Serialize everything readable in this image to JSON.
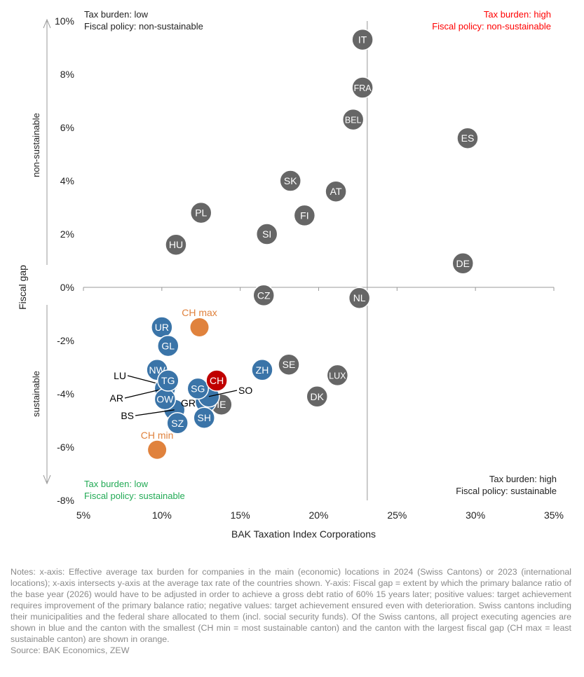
{
  "chart_data": {
    "type": "scatter",
    "xlabel": "BAK Taxation Index Corporations",
    "ylabel": "Fiscal gap",
    "xlim": [
      5,
      35
    ],
    "ylim": [
      -8,
      10
    ],
    "xticks": [
      "5%",
      "10%",
      "15%",
      "20%",
      "25%",
      "30%",
      "35%"
    ],
    "yticks": [
      "-8%",
      "-6%",
      "-4%",
      "-2%",
      "0%",
      "2%",
      "4%",
      "6%",
      "8%",
      "10%"
    ],
    "x_axis_crosses_y_at": 23.1,
    "y_arrow_labels": {
      "up": "non-sustainable",
      "down": "sustainable"
    },
    "quadrants": {
      "top_left": [
        "Tax burden: low",
        "Fiscal policy: non-sustainable"
      ],
      "top_right": [
        "Tax burden: high",
        "Fiscal policy: non-sustainable"
      ],
      "bottom_left": [
        "Tax burden: low",
        "Fiscal policy: sustainable"
      ],
      "bottom_right": [
        "Tax burden: high",
        "Fiscal policy: sustainable"
      ]
    },
    "colors": {
      "country": "#666666",
      "canton": "#3a74a8",
      "ch": "#c00000",
      "ch_extreme": "#e0823d",
      "top_right_text": "#ff0000",
      "bottom_left_text": "#22aa55"
    },
    "points": [
      {
        "label": "IT",
        "x": 22.8,
        "y": 9.3,
        "group": "country"
      },
      {
        "label": "FRA",
        "x": 22.8,
        "y": 7.5,
        "group": "country"
      },
      {
        "label": "BEL",
        "x": 22.2,
        "y": 6.3,
        "group": "country"
      },
      {
        "label": "ES",
        "x": 29.5,
        "y": 5.6,
        "group": "country"
      },
      {
        "label": "SK",
        "x": 18.2,
        "y": 4.0,
        "group": "country"
      },
      {
        "label": "AT",
        "x": 21.1,
        "y": 3.6,
        "group": "country"
      },
      {
        "label": "PL",
        "x": 12.5,
        "y": 2.8,
        "group": "country"
      },
      {
        "label": "FI",
        "x": 19.1,
        "y": 2.7,
        "group": "country"
      },
      {
        "label": "SI",
        "x": 16.7,
        "y": 2.0,
        "group": "country"
      },
      {
        "label": "HU",
        "x": 10.9,
        "y": 1.6,
        "group": "country"
      },
      {
        "label": "DE",
        "x": 29.2,
        "y": 0.9,
        "group": "country"
      },
      {
        "label": "CZ",
        "x": 16.5,
        "y": -0.3,
        "group": "country"
      },
      {
        "label": "NL",
        "x": 22.6,
        "y": -0.4,
        "group": "country"
      },
      {
        "label": "SE",
        "x": 18.1,
        "y": -2.9,
        "group": "country"
      },
      {
        "label": "LUX",
        "x": 21.2,
        "y": -3.3,
        "group": "country"
      },
      {
        "label": "DK",
        "x": 19.9,
        "y": -4.1,
        "group": "country"
      },
      {
        "label": "IE",
        "x": 13.8,
        "y": -4.4,
        "group": "country"
      },
      {
        "label": "CH max",
        "x": 12.4,
        "y": -1.5,
        "group": "ch_extreme"
      },
      {
        "label": "CH min",
        "x": 9.7,
        "y": -6.1,
        "group": "ch_extreme"
      },
      {
        "label": "UR",
        "x": 10.0,
        "y": -1.5,
        "group": "canton"
      },
      {
        "label": "GL",
        "x": 10.4,
        "y": -2.2,
        "group": "canton"
      },
      {
        "label": "ZH",
        "x": 16.4,
        "y": -3.1,
        "group": "canton"
      },
      {
        "label": "NW",
        "x": 9.7,
        "y": -3.1,
        "group": "canton"
      },
      {
        "label": "LU",
        "x": 10.3,
        "y": -3.7,
        "group": "canton"
      },
      {
        "label": "AR",
        "x": 10.2,
        "y": -3.8,
        "group": "canton"
      },
      {
        "label": "BS",
        "x": 10.8,
        "y": -4.6,
        "group": "canton"
      },
      {
        "label": "GR",
        "x": 12.8,
        "y": -4.3,
        "group": "canton"
      },
      {
        "label": "SO",
        "x": 13.0,
        "y": -4.1,
        "group": "canton"
      },
      {
        "label": "SZ",
        "x": 11.0,
        "y": -5.1,
        "group": "canton"
      },
      {
        "label": "SH",
        "x": 12.7,
        "y": -4.9,
        "group": "canton"
      },
      {
        "label": "OW",
        "x": 10.2,
        "y": -4.2,
        "group": "canton"
      },
      {
        "label": "TG",
        "x": 10.4,
        "y": -3.5,
        "group": "canton"
      },
      {
        "label": "SG",
        "x": 12.3,
        "y": -3.8,
        "group": "canton"
      },
      {
        "label": "CH",
        "x": 13.5,
        "y": -3.5,
        "group": "ch"
      }
    ]
  },
  "notes": "Notes: x-axis: Effective average tax burden for companies in the main (economic) locations in 2024 (Swiss Cantons) or 2023 (international locations); x-axis intersects y-axis at the average tax rate of the countries shown. Y-axis: Fiscal gap = extent by which the primary balance ratio of the base year (2026) would have to be adjusted in order to achieve a gross debt ratio of 60% 15 years later; positive values: target achievement requires improvement of the primary balance ratio; negative values: target achievement ensured even with deterioration. Swiss cantons including their municipalities and the federal share allocated to them (incl. social security funds). Of the Swiss cantons, all project executing agencies are shown in blue and the canton with the smallest (CH min = most sustainable canton) and the canton with the largest fiscal gap (CH max = least sustainable canton) are shown in orange.",
  "source": "Source: BAK Economics, ZEW"
}
